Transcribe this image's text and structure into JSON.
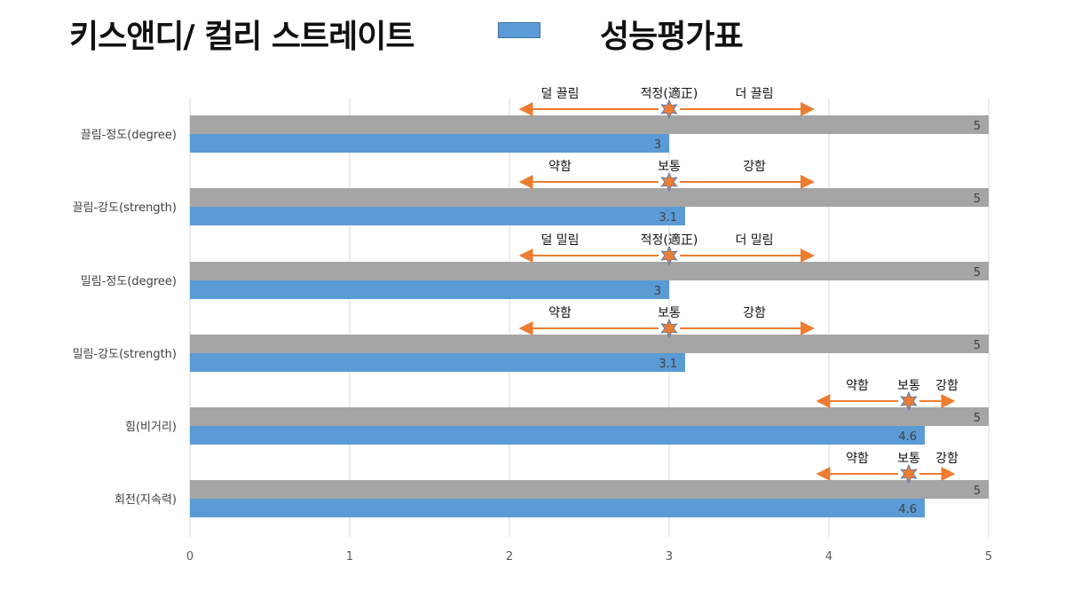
{
  "title": "키스앤디/ 컬리 스트레이트",
  "legend_label": "성능평가표",
  "colors": {
    "reference": "#a5a5a5",
    "score": "#5b9bd5",
    "arrow": "#ed7d31",
    "star": "#ed7d31",
    "star_stroke": "#5a7bb5"
  },
  "chart_data": {
    "type": "bar",
    "orientation": "horizontal",
    "categories": [
      "끌림-정도(degree)",
      "끌림-강도(strength)",
      "밀림-정도(degree)",
      "밀림-강도(strength)",
      "힘(비거리)",
      "회전(지속력)"
    ],
    "series": [
      {
        "name": "",
        "role": "reference",
        "values": [
          5,
          5,
          5,
          5,
          5,
          5
        ]
      },
      {
        "name": "성능평가표",
        "role": "score",
        "values": [
          3,
          3.1,
          3,
          3.1,
          4.6,
          4.6
        ]
      }
    ],
    "data_labels": {
      "reference": [
        "5",
        "5",
        "5",
        "5",
        "5",
        "5"
      ],
      "score": [
        "3",
        "3.1",
        "3",
        "3.1",
        "4.6",
        "4.6"
      ]
    },
    "xlim": [
      0,
      5
    ],
    "xticks": [
      "0",
      "1",
      "2",
      "3",
      "4",
      "5"
    ],
    "grid": true,
    "annotations": [
      {
        "left": "덜 끌림",
        "center": "적정(適正)",
        "right": "더 끌림",
        "marker": 3,
        "from": 2.07,
        "to": 3.9
      },
      {
        "left": "약함",
        "center": "보통",
        "right": "강함",
        "marker": 3,
        "from": 2.07,
        "to": 3.9
      },
      {
        "left": "덜 밀림",
        "center": "적정(適正)",
        "right": "더 밀림",
        "marker": 3,
        "from": 2.07,
        "to": 3.9
      },
      {
        "left": "약함",
        "center": "보통",
        "right": "강함",
        "marker": 3,
        "from": 2.07,
        "to": 3.9
      },
      {
        "left": "약함",
        "center": "보통",
        "right": "강함",
        "marker": 4.5,
        "from": 3.93,
        "to": 4.78
      },
      {
        "left": "약함",
        "center": "보통",
        "right": "강함",
        "marker": 4.5,
        "from": 3.93,
        "to": 4.78
      }
    ]
  }
}
